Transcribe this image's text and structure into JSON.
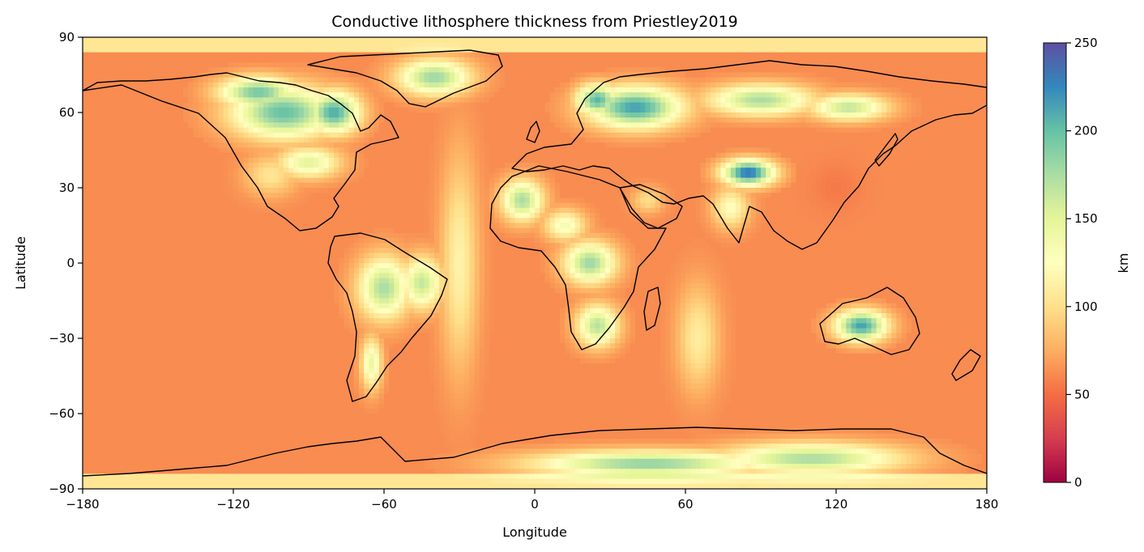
{
  "map": {
    "title": "Conductive lithosphere thickness from Priestley2019",
    "xlabel": "Longitude",
    "ylabel": "Latitude",
    "projection": "plate-carree",
    "xlim": [
      -180,
      180
    ],
    "ylim": [
      -90,
      90
    ],
    "xticks": [
      -180,
      -120,
      -60,
      0,
      60,
      120,
      180
    ],
    "yticks": [
      -90,
      -60,
      -30,
      0,
      30,
      60,
      90
    ],
    "xtick_labels": [
      "−180",
      "−120",
      "−60",
      "0",
      "60",
      "120",
      "180"
    ],
    "ytick_labels": [
      "−90",
      "−60",
      "−30",
      "0",
      "30",
      "60",
      "90"
    ],
    "coastlines": true,
    "grid": false
  },
  "colorbar": {
    "label": "km",
    "colormap": "Spectral",
    "range": [
      0,
      250
    ],
    "ticks": [
      0,
      50,
      100,
      150,
      200,
      250
    ],
    "tick_labels": [
      "0",
      "50",
      "100",
      "150",
      "200",
      "250"
    ],
    "stops": [
      "#9e0142",
      "#d53e4f",
      "#f46d43",
      "#fdae61",
      "#fee08b",
      "#ffffbf",
      "#e6f598",
      "#abdda4",
      "#66c2a5",
      "#3288bd",
      "#5e4fa2"
    ]
  },
  "chart_data": {
    "type": "heatmap",
    "x_range_deg": [
      -180,
      180
    ],
    "y_range_deg": [
      -90,
      90
    ],
    "cell_size_deg": 2,
    "units": "km",
    "ocean_background_km": 62,
    "polar_band_km": 105,
    "features_km": [
      {
        "lon": -100,
        "lat": 60,
        "sx": 20,
        "sy": 10,
        "value": 200
      },
      {
        "lon": -80,
        "lat": 60,
        "sx": 10,
        "sy": 8,
        "value": 210
      },
      {
        "lon": -110,
        "lat": 68,
        "sx": 15,
        "sy": 6,
        "value": 195
      },
      {
        "lon": -90,
        "lat": 40,
        "sx": 12,
        "sy": 6,
        "value": 150
      },
      {
        "lon": -105,
        "lat": 35,
        "sx": 10,
        "sy": 8,
        "value": 105
      },
      {
        "lon": -40,
        "lat": 74,
        "sx": 14,
        "sy": 7,
        "value": 180
      },
      {
        "lon": -60,
        "lat": -10,
        "sx": 10,
        "sy": 12,
        "value": 175
      },
      {
        "lon": -45,
        "lat": -8,
        "sx": 8,
        "sy": 10,
        "value": 165
      },
      {
        "lon": -65,
        "lat": -40,
        "sx": 4,
        "sy": 10,
        "value": 145
      },
      {
        "lon": -5,
        "lat": 25,
        "sx": 8,
        "sy": 8,
        "value": 175
      },
      {
        "lon": 22,
        "lat": 0,
        "sx": 10,
        "sy": 8,
        "value": 180
      },
      {
        "lon": 25,
        "lat": -25,
        "sx": 8,
        "sy": 8,
        "value": 170
      },
      {
        "lon": 12,
        "lat": 15,
        "sx": 8,
        "sy": 6,
        "value": 135
      },
      {
        "lon": 40,
        "lat": 62,
        "sx": 18,
        "sy": 8,
        "value": 215
      },
      {
        "lon": 25,
        "lat": 65,
        "sx": 8,
        "sy": 6,
        "value": 205
      },
      {
        "lon": 90,
        "lat": 65,
        "sx": 20,
        "sy": 6,
        "value": 175
      },
      {
        "lon": 125,
        "lat": 62,
        "sx": 15,
        "sy": 5,
        "value": 165
      },
      {
        "lon": 85,
        "lat": 36,
        "sx": 10,
        "sy": 5,
        "value": 235
      },
      {
        "lon": 78,
        "lat": 22,
        "sx": 7,
        "sy": 8,
        "value": 125
      },
      {
        "lon": 45,
        "lat": 25,
        "sx": 6,
        "sy": 5,
        "value": 100
      },
      {
        "lon": 130,
        "lat": -25,
        "sx": 10,
        "sy": 6,
        "value": 215
      },
      {
        "lon": 120,
        "lat": 30,
        "sx": 10,
        "sy": 10,
        "value": 55
      },
      {
        "lon": 45,
        "lat": -80,
        "sx": 45,
        "sy": 5,
        "value": 185
      },
      {
        "lon": 110,
        "lat": -78,
        "sx": 35,
        "sy": 6,
        "value": 175
      },
      {
        "lon": -30,
        "lat": 0,
        "sx": 7,
        "sy": 40,
        "value": 115
      },
      {
        "lon": 65,
        "lat": -30,
        "sx": 8,
        "sy": 20,
        "value": 110
      }
    ]
  }
}
